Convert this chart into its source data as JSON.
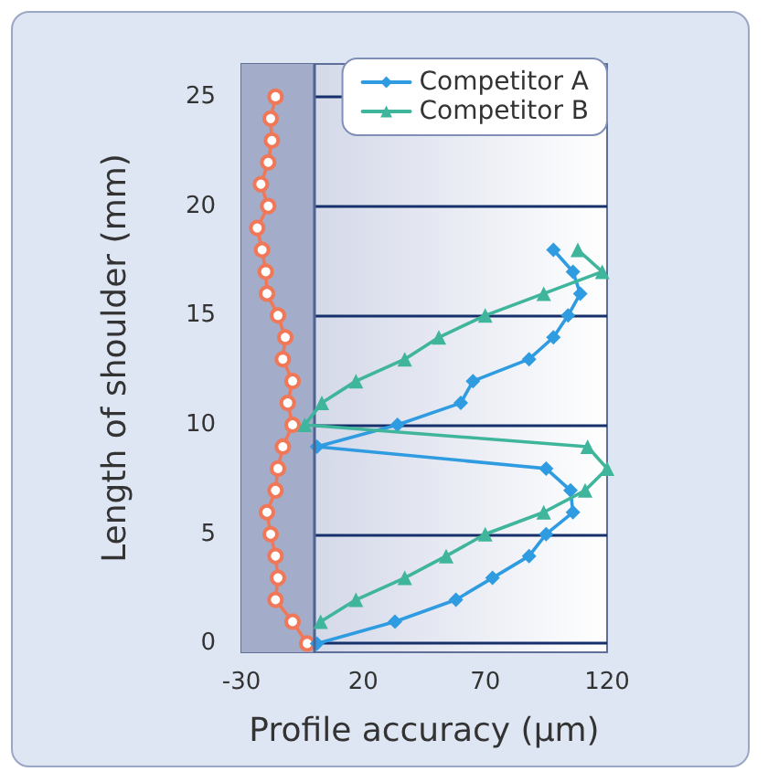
{
  "chart_data": {
    "type": "line",
    "xlabel": "Profile accuracy (µm)",
    "ylabel": "Length of shoulder (mm)",
    "xlim": [
      -30,
      120
    ],
    "xticks": [
      -30,
      20,
      70,
      120
    ],
    "ylim": [
      -0.4,
      26.5
    ],
    "yticks": [
      0,
      5,
      10,
      15,
      20,
      25
    ],
    "grid": "y",
    "legend": "top right",
    "bands": [
      {
        "axis": "x",
        "from": -30,
        "to": 0,
        "color": "#a3adc9"
      }
    ],
    "ref_lines": [
      {
        "axis": "x",
        "value": 0,
        "color": "#4f6390"
      }
    ],
    "series": [
      {
        "color": "#f07858",
        "marker": "circle",
        "x": [
          -3,
          -9,
          -16,
          -15,
          -16,
          -18,
          -19.5,
          -16,
          -15,
          -13,
          -9,
          -11,
          -9,
          -13,
          -12,
          -15,
          -19.5,
          -20,
          -21.5,
          -23.5,
          -19,
          -22,
          -19,
          -17.5,
          -18,
          -16
        ],
        "values": [
          0,
          1,
          2,
          3,
          4,
          5,
          6,
          7,
          8,
          9,
          10,
          11,
          12,
          13,
          14,
          15,
          16,
          17,
          18,
          19,
          20,
          21,
          22,
          23,
          24,
          25
        ]
      },
      {
        "name": "Competitor A",
        "color": "#2f9be0",
        "marker": "diamond",
        "x": [
          1,
          33,
          58,
          73,
          88,
          95,
          106,
          105,
          95,
          1,
          34,
          60,
          65,
          88,
          98,
          104,
          109,
          106,
          98
        ],
        "values": [
          0,
          1,
          2,
          3,
          4,
          5,
          6,
          7,
          8,
          9,
          10,
          11,
          12,
          13,
          14,
          15,
          16,
          17,
          18
        ]
      },
      {
        "name": "Competitor B",
        "color": "#3fb59c",
        "marker": "triangle",
        "x": [
          2.5,
          17,
          37,
          54,
          70,
          94,
          111,
          120,
          112,
          -4,
          3,
          17,
          37,
          51,
          70,
          94,
          118,
          108
        ],
        "values": [
          1,
          2,
          3,
          4,
          5,
          6,
          7,
          8,
          9,
          10,
          11,
          12,
          13,
          14,
          15,
          16,
          17,
          18
        ]
      }
    ]
  }
}
